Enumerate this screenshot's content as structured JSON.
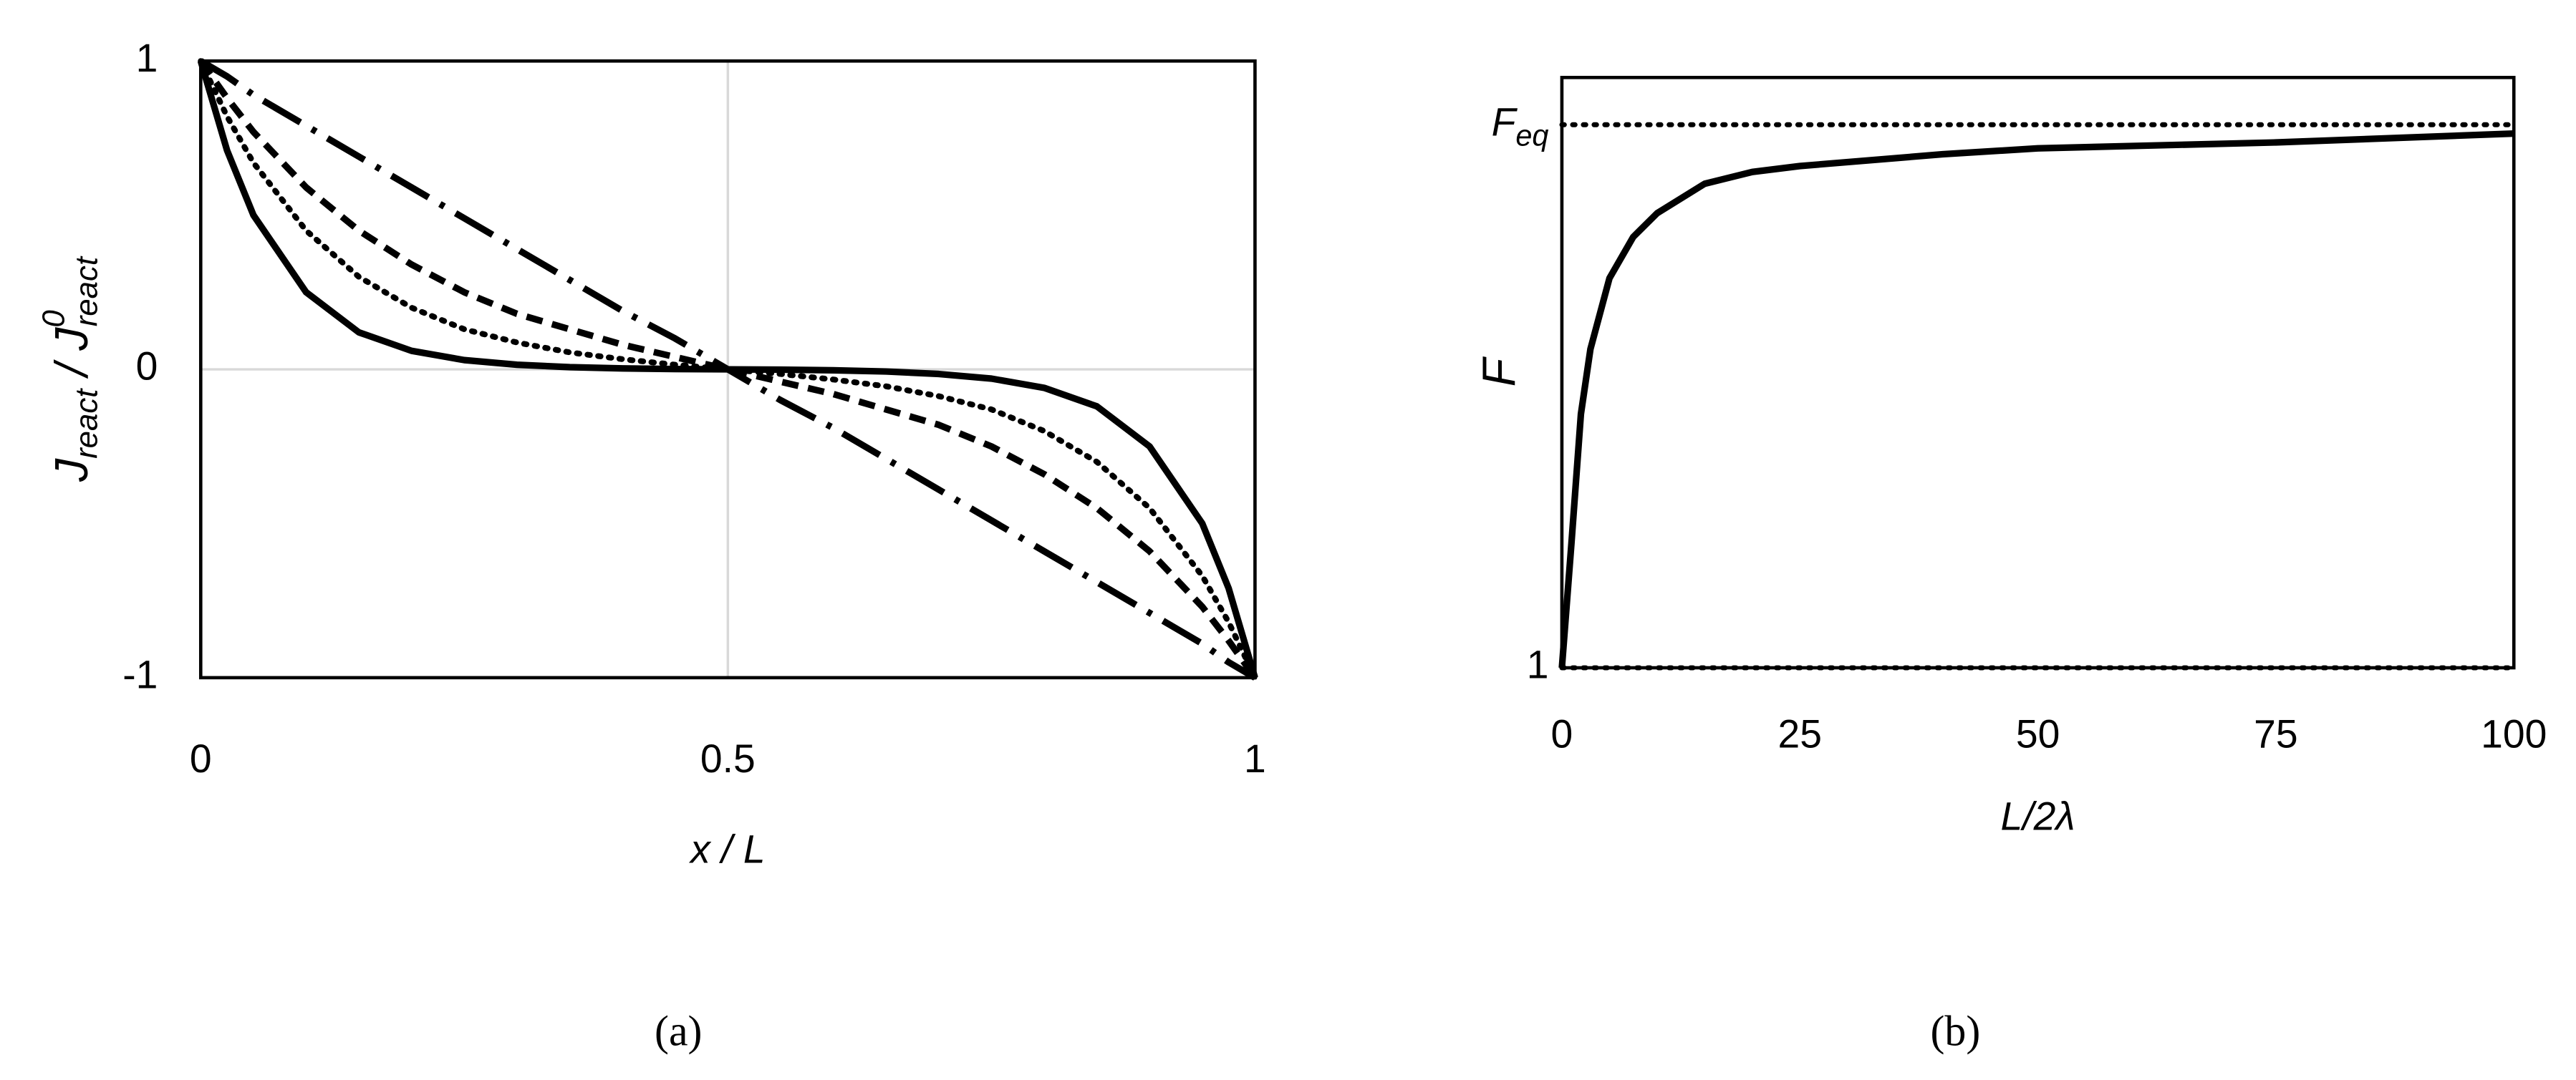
{
  "chart_data": [
    {
      "type": "line",
      "caption": "(a)",
      "xlabel": "x / L",
      "ylabel": [
        "J",
        "react",
        "/",
        "J",
        "0",
        "react"
      ],
      "x": [
        0,
        0.025,
        0.05,
        0.1,
        0.15,
        0.2,
        0.25,
        0.3,
        0.35,
        0.4,
        0.45,
        0.5,
        0.55,
        0.6,
        0.65,
        0.7,
        0.75,
        0.8,
        0.85,
        0.9,
        0.95,
        0.975,
        1
      ],
      "series": [
        {
          "color": "#000000",
          "dash": "solid",
          "values": [
            1,
            0.71,
            0.5,
            0.25,
            0.12,
            0.06,
            0.03,
            0.015,
            0.007,
            0.003,
            0.001,
            0,
            -0.001,
            -0.003,
            -0.007,
            -0.015,
            -0.03,
            -0.06,
            -0.12,
            -0.25,
            -0.5,
            -0.71,
            -1
          ]
        },
        {
          "color": "#000000",
          "dash": "dotted",
          "values": [
            1,
            0.82,
            0.67,
            0.45,
            0.3,
            0.2,
            0.13,
            0.087,
            0.055,
            0.033,
            0.015,
            0,
            -0.015,
            -0.033,
            -0.055,
            -0.087,
            -0.13,
            -0.2,
            -0.3,
            -0.45,
            -0.67,
            -0.82,
            -1
          ]
        },
        {
          "color": "#000000",
          "dash": "dashed",
          "values": [
            1,
            0.88,
            0.77,
            0.59,
            0.45,
            0.34,
            0.25,
            0.18,
            0.13,
            0.08,
            0.04,
            0,
            -0.04,
            -0.08,
            -0.13,
            -0.18,
            -0.25,
            -0.34,
            -0.45,
            -0.59,
            -0.77,
            -0.88,
            -1
          ]
        },
        {
          "color": "#000000",
          "dash": "dashdot",
          "values": [
            1,
            0.95,
            0.89,
            0.79,
            0.69,
            0.59,
            0.49,
            0.39,
            0.29,
            0.19,
            0.1,
            0,
            -0.1,
            -0.19,
            -0.29,
            -0.39,
            -0.49,
            -0.59,
            -0.69,
            -0.79,
            -0.89,
            -0.95,
            -1
          ]
        }
      ],
      "xlim": [
        0,
        1
      ],
      "ylim": [
        -1,
        1
      ],
      "xticks": [
        0,
        0.5,
        1
      ],
      "yticks": [
        -1,
        0,
        1
      ],
      "grid": "both",
      "grid_color": "#d9d9d9",
      "grid_style": "solid"
    },
    {
      "type": "line",
      "caption": "(b)",
      "xlabel": "L/2λ",
      "ylabel": [
        "F"
      ],
      "x": [
        0,
        1,
        2,
        3,
        5,
        7.5,
        10,
        15,
        20,
        25,
        40,
        50,
        75,
        100
      ],
      "series": [
        {
          "color": "#000000",
          "dash": "solid",
          "values": [
            1,
            1.21,
            1.43,
            1.54,
            1.66,
            1.73,
            1.77,
            1.82,
            1.84,
            1.85,
            1.87,
            1.88,
            1.89,
            1.905
          ]
        }
      ],
      "xlim": [
        0,
        100
      ],
      "ylim": [
        1,
        2
      ],
      "xticks": [
        0,
        25,
        50,
        75,
        100
      ],
      "yticks": [
        1,
        {
          "value": 1.92,
          "label": "Feq"
        }
      ],
      "grid": "y",
      "grid_color": "#000000",
      "grid_style": "dotted"
    }
  ]
}
